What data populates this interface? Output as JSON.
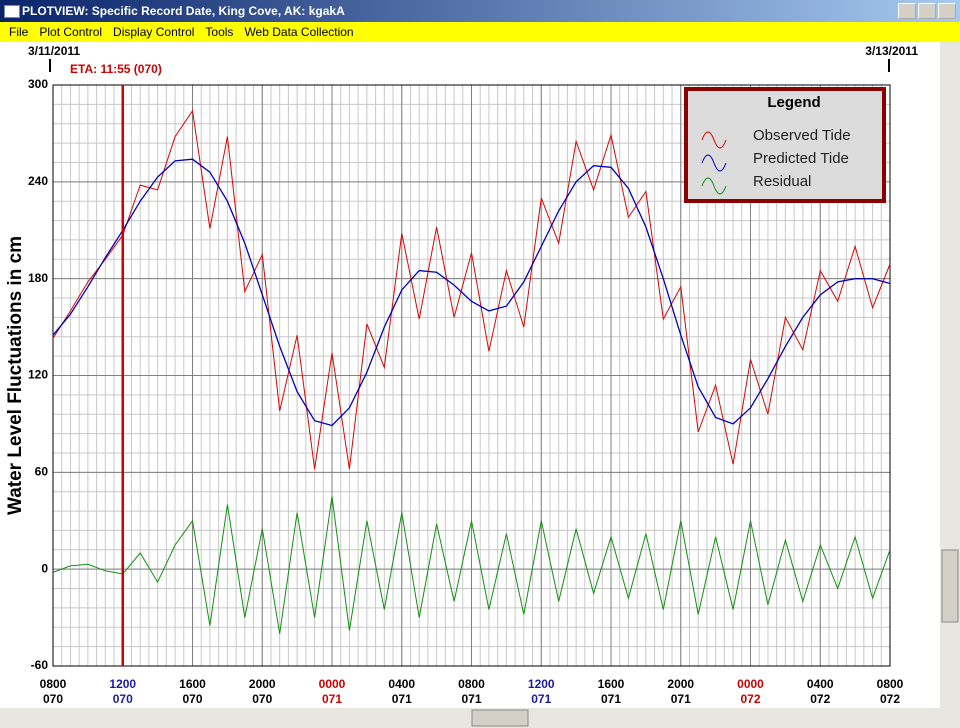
{
  "window": {
    "title": "PLOTVIEW: Specific Record Date, King Cove, AK: kgakA",
    "menu": [
      "File",
      "Plot Control",
      "Display Control",
      "Tools",
      "Web Data Collection"
    ]
  },
  "chart_data": {
    "type": "line",
    "start_date": "3/11/2011",
    "end_date": "3/13/2011",
    "ylabel": "Water Level Fluctuations in cm",
    "annotation": {
      "text": "ETA: 11:55 (070)",
      "x": 4,
      "color": "#d00000"
    },
    "legend": {
      "title": "Legend",
      "position": "upper right"
    },
    "grid": true,
    "xlim": [
      0,
      48
    ],
    "xticks": [
      {
        "value": 0,
        "label": "0800"
      },
      {
        "value": 4,
        "label": "1200"
      },
      {
        "value": 8,
        "label": "1600"
      },
      {
        "value": 12,
        "label": "2000"
      },
      {
        "value": 16,
        "label": "0000"
      },
      {
        "value": 20,
        "label": "0400"
      },
      {
        "value": 24,
        "label": "0800"
      },
      {
        "value": 28,
        "label": "1200"
      },
      {
        "value": 32,
        "label": "1600"
      },
      {
        "value": 36,
        "label": "2000"
      },
      {
        "value": 40,
        "label": "0000"
      },
      {
        "value": 44,
        "label": "0400"
      },
      {
        "value": 48,
        "label": "0800"
      }
    ],
    "xtick_days": [
      "070",
      "070",
      "070",
      "070",
      "071",
      "071",
      "071",
      "071",
      "071",
      "071",
      "072",
      "072",
      "072"
    ],
    "xtick_colors": [
      "#000000",
      "#1a1aa0",
      "#000000",
      "#000000",
      "#d00000",
      "#000000",
      "#000000",
      "#1a1aa0",
      "#000000",
      "#000000",
      "#d00000",
      "#000000",
      "#000000"
    ],
    "ylim": [
      -60,
      300
    ],
    "yticks": [
      -60,
      0,
      60,
      120,
      180,
      240,
      300
    ],
    "x": [
      0,
      1,
      2,
      3,
      4,
      5,
      6,
      7,
      8,
      9,
      10,
      11,
      12,
      13,
      14,
      15,
      16,
      17,
      18,
      19,
      20,
      21,
      22,
      23,
      24,
      25,
      26,
      27,
      28,
      29,
      30,
      31,
      32,
      33,
      34,
      35,
      36,
      37,
      38,
      39,
      40,
      41,
      42,
      43,
      44,
      45,
      46,
      47,
      48
    ],
    "series": [
      {
        "name": "Observed Tide",
        "color": "#e00000",
        "values": [
          143,
          160,
          178,
          192,
          207,
          238,
          235,
          268,
          284,
          211,
          268,
          172,
          195,
          98,
          145,
          62,
          134,
          62,
          152,
          125,
          208,
          155,
          212,
          156,
          196,
          135,
          185,
          150,
          230,
          202,
          265,
          235,
          269,
          218,
          234,
          155,
          175,
          85,
          114,
          65,
          130,
          96,
          156,
          136,
          185,
          166,
          200,
          162,
          189
        ]
      },
      {
        "name": "Predicted Tide",
        "color": "#0000c0",
        "values": [
          145,
          158,
          175,
          193,
          210,
          228,
          243,
          253,
          254,
          246,
          228,
          202,
          170,
          138,
          110,
          92,
          89,
          100,
          122,
          150,
          173,
          185,
          184,
          176,
          166,
          160,
          163,
          178,
          200,
          222,
          240,
          250,
          249,
          236,
          212,
          180,
          145,
          113,
          94,
          90,
          100,
          118,
          138,
          156,
          170,
          178,
          180,
          180,
          177
        ]
      },
      {
        "name": "Residual",
        "color": "#109010",
        "values": [
          -2,
          2,
          3,
          -1,
          -3,
          10,
          -8,
          15,
          30,
          -35,
          40,
          -30,
          25,
          -40,
          35,
          -30,
          45,
          -38,
          30,
          -25,
          35,
          -30,
          28,
          -20,
          30,
          -25,
          22,
          -28,
          30,
          -20,
          25,
          -15,
          20,
          -18,
          22,
          -25,
          30,
          -28,
          20,
          -25,
          30,
          -22,
          18,
          -20,
          15,
          -12,
          20,
          -18,
          12
        ]
      }
    ]
  }
}
